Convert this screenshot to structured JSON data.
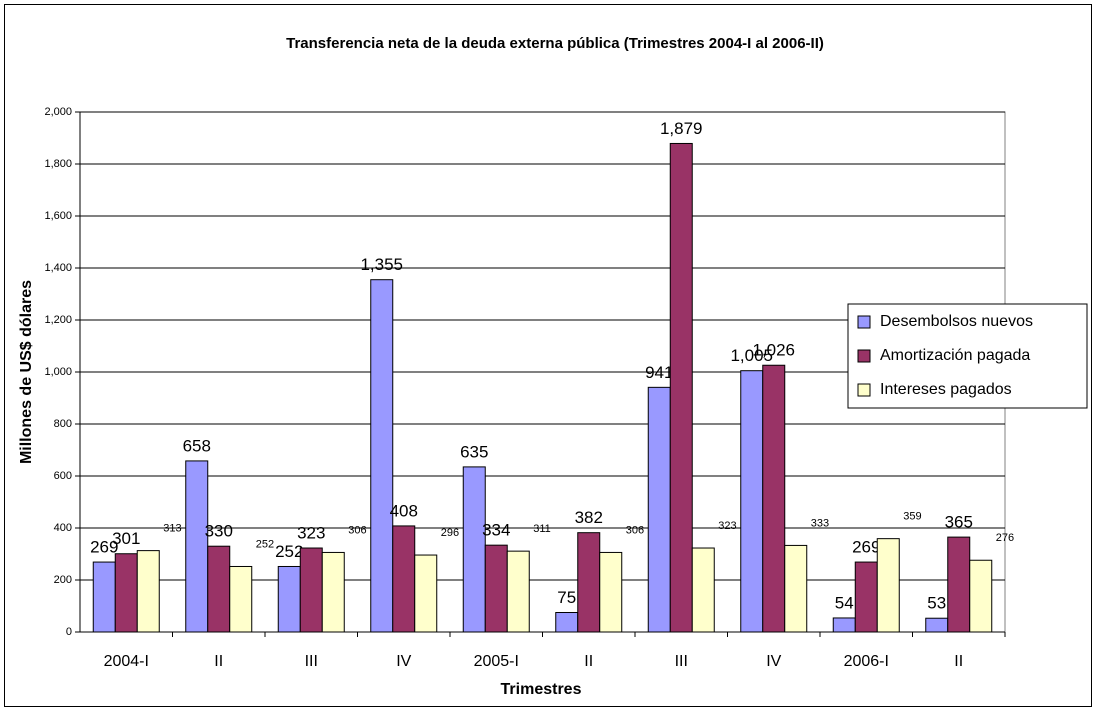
{
  "chart_data": {
    "type": "bar",
    "title": "Transferencia neta de la deuda externa pública (Trimestres 2004-I al 2006-II)",
    "x_label": "Trimestres",
    "y_label": "Millones de US$ dólares",
    "categories": [
      "2004-I",
      "II",
      "III",
      "IV",
      "2005-I",
      "II",
      "III",
      "IV",
      "2006-I",
      "II"
    ],
    "series": [
      {
        "name": "Desembolsos nuevos",
        "color": "#9999ff",
        "values": [
          269,
          658,
          252,
          1355,
          635,
          75,
          941,
          1005,
          54,
          53
        ],
        "value_labels": [
          "269",
          "658",
          "252",
          "1,355",
          "635",
          "75",
          "941",
          "1,005",
          "54",
          "53"
        ]
      },
      {
        "name": "Amortización pagada",
        "color": "#993366",
        "values": [
          301,
          330,
          323,
          408,
          334,
          382,
          1879,
          1026,
          269,
          365
        ],
        "value_labels": [
          "301",
          "330",
          "323",
          "408",
          "334",
          "382",
          "1,879",
          "1,026",
          "269",
          "365"
        ]
      },
      {
        "name": "Intereses pagados",
        "color": "#ffffcc",
        "values": [
          313,
          252,
          306,
          296,
          311,
          306,
          323,
          333,
          359,
          276
        ],
        "value_labels": [
          "313",
          "252",
          "306",
          "296",
          "311",
          "306",
          "323",
          "333",
          "359",
          "276"
        ]
      }
    ],
    "ylim": [
      0,
      2000
    ],
    "yticks": [
      0,
      200,
      400,
      600,
      800,
      {
        "value": 1000,
        "label": "1,000"
      },
      {
        "value": 1200,
        "label": "1,200"
      },
      {
        "value": 1400,
        "label": "1,400"
      },
      {
        "value": 1600,
        "label": "1,600"
      },
      {
        "value": 1800,
        "label": "1,800"
      },
      {
        "value": 2000,
        "label": "2,000"
      }
    ],
    "grid": true,
    "legend": "right"
  }
}
